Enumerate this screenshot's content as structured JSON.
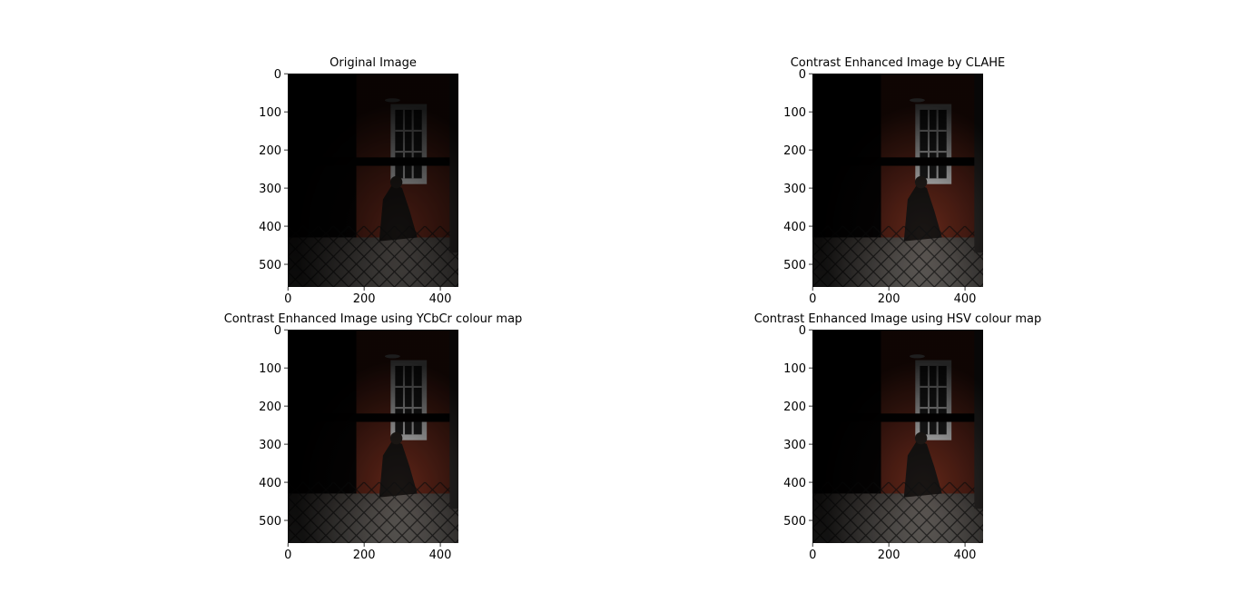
{
  "chart_data": [
    {
      "type": "image",
      "title": "Original Image",
      "xlim": [
        -0.5,
        447.5
      ],
      "ylim": [
        559.5,
        -0.5
      ],
      "xticks": [
        0,
        200,
        400
      ],
      "yticks": [
        0,
        100,
        200,
        300,
        400,
        500
      ]
    },
    {
      "type": "image",
      "title": "Contrast Enhanced Image by CLAHE",
      "xlim": [
        -0.5,
        447.5
      ],
      "ylim": [
        559.5,
        -0.5
      ],
      "xticks": [
        0,
        200,
        400
      ],
      "yticks": [
        0,
        100,
        200,
        300,
        400,
        500
      ]
    },
    {
      "type": "image",
      "title": "Contrast Enhanced Image using YCbCr colour map",
      "xlim": [
        -0.5,
        447.5
      ],
      "ylim": [
        559.5,
        -0.5
      ],
      "xticks": [
        0,
        200,
        400
      ],
      "yticks": [
        0,
        100,
        200,
        300,
        400,
        500
      ]
    },
    {
      "type": "image",
      "title": "Contrast Enhanced Image using HSV colour map",
      "xlim": [
        -0.5,
        447.5
      ],
      "ylim": [
        559.5,
        -0.5
      ],
      "xticks": [
        0,
        200,
        400
      ],
      "yticks": [
        0,
        100,
        200,
        300,
        400,
        500
      ]
    }
  ]
}
